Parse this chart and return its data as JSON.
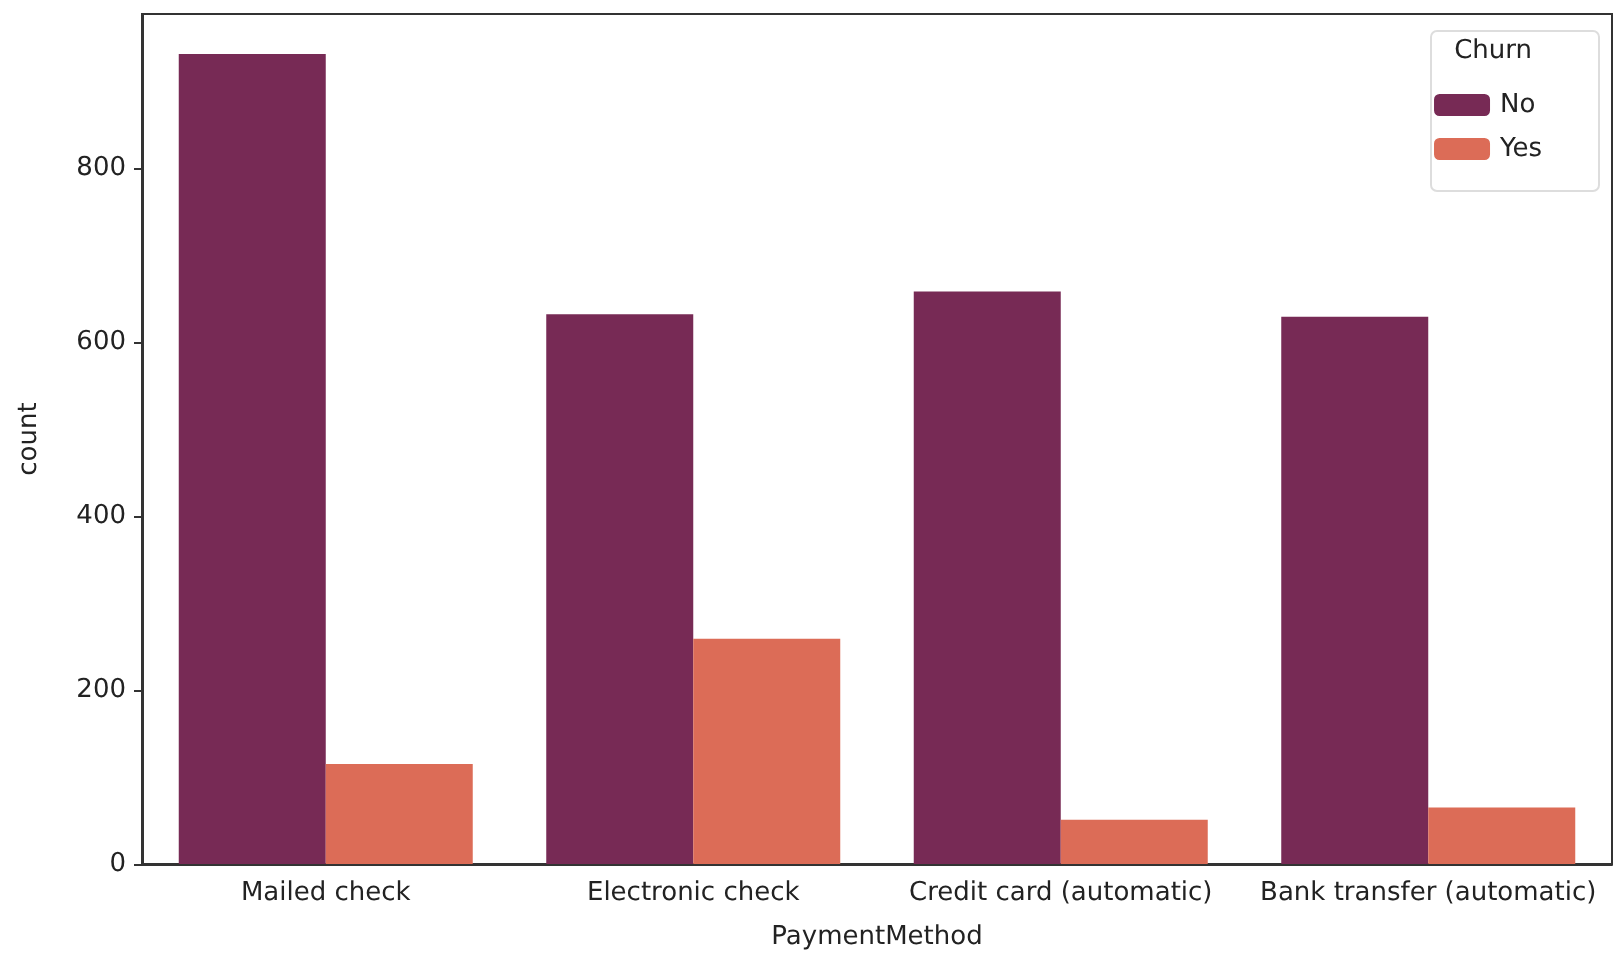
{
  "chart_data": {
    "type": "bar",
    "xlabel": "PaymentMethod",
    "ylabel": "count",
    "legend_title": "Churn",
    "categories": [
      "Mailed check",
      "Electronic check",
      "Credit card (automatic)",
      "Bank transfer (automatic)"
    ],
    "series": [
      {
        "name": "No",
        "color": "#772a55",
        "values": [
          931,
          632,
          658,
          629
        ]
      },
      {
        "name": "Yes",
        "color": "#dc6c57",
        "values": [
          115,
          259,
          51,
          65
        ]
      }
    ],
    "ylim": [
      0,
      977
    ],
    "yticks": [
      0,
      200,
      400,
      600,
      800
    ],
    "grid": false,
    "legend": "top right"
  }
}
